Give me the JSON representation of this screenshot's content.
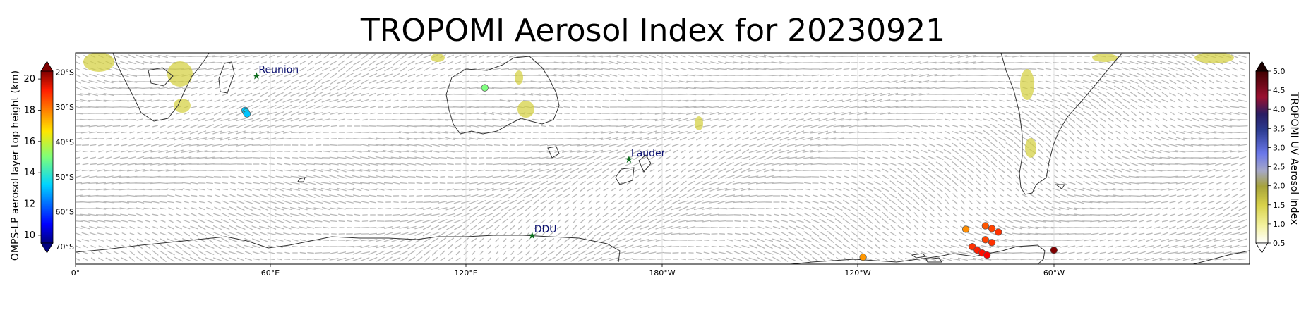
{
  "title": "TROPOMI Aerosol Index for 20230921",
  "map": {
    "x_ticks": [
      "0°",
      "60°E",
      "120°E",
      "180°W",
      "120°W",
      "60°W"
    ],
    "lat_labels": [
      "20°S",
      "30°S",
      "40°S",
      "50°S",
      "60°S",
      "70°S"
    ],
    "stations": [
      {
        "name": "Reunion",
        "lon": 55.5,
        "lat": -21.1
      },
      {
        "name": "Lauder",
        "lon": 169.7,
        "lat": -45.0
      },
      {
        "name": "DDU",
        "lon": 140.0,
        "lat": -66.7
      }
    ],
    "omps_points": [
      {
        "lon": 52.0,
        "lat": -31.0,
        "height_km": 13.0
      },
      {
        "lon": 52.3,
        "lat": -31.5,
        "height_km": 13.2
      },
      {
        "lon": 52.6,
        "lat": -32.0,
        "height_km": 13.0
      },
      {
        "lon": 125.5,
        "lat": -24.5,
        "height_km": 15.0
      },
      {
        "lon": -87.0,
        "lat": -65.0,
        "height_km": 17.6
      },
      {
        "lon": -81.0,
        "lat": -64.0,
        "height_km": 18.2
      },
      {
        "lon": -79.0,
        "lat": -64.8,
        "height_km": 18.4
      },
      {
        "lon": -77.0,
        "lat": -65.8,
        "height_km": 18.6
      },
      {
        "lon": -81.0,
        "lat": -68.0,
        "height_km": 18.4
      },
      {
        "lon": -79.0,
        "lat": -68.8,
        "height_km": 18.6
      },
      {
        "lon": -85.0,
        "lat": -70.0,
        "height_km": 18.6
      },
      {
        "lon": -83.5,
        "lat": -71.0,
        "height_km": 18.8
      },
      {
        "lon": -82.0,
        "lat": -71.8,
        "height_km": 19.0
      },
      {
        "lon": -80.5,
        "lat": -72.4,
        "height_km": 19.2
      },
      {
        "lon": -60.0,
        "lat": -71.0,
        "height_km": 20.5
      },
      {
        "lon": -118.5,
        "lat": -73.0,
        "height_km": 17.5
      }
    ]
  },
  "colorbar_left": {
    "label": "OMPS-LP aerosol layer top height (km)",
    "ticks": [
      "20",
      "18",
      "16",
      "14",
      "12",
      "10"
    ],
    "min": 9.5,
    "max": 20.5
  },
  "colorbar_right": {
    "label": "TROPOMI UV Aerosol Index",
    "ticks": [
      "5.0",
      "4.5",
      "4.0",
      "3.5",
      "3.0",
      "2.5",
      "2.0",
      "1.5",
      "1.0",
      "0.5"
    ],
    "min": 0.5,
    "max": 5.0
  }
}
